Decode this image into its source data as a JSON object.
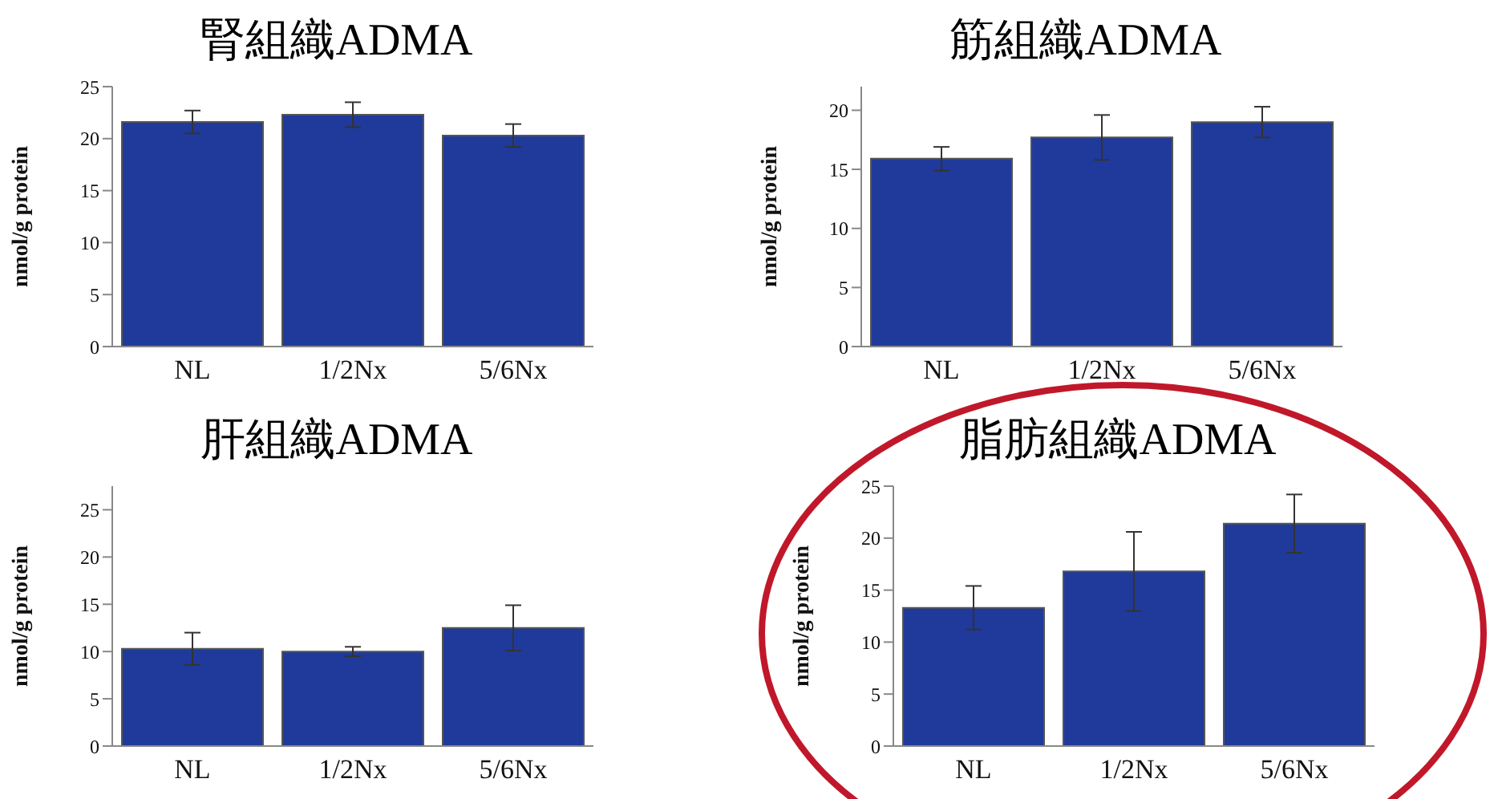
{
  "chart_data": [
    {
      "type": "bar",
      "title": "腎組織ADMA",
      "ylabel": "nmol/g protein",
      "categories": [
        "NL",
        "1/2Nx",
        "5/6Nx"
      ],
      "values": [
        21.6,
        22.3,
        20.3
      ],
      "errors": [
        1.1,
        1.2,
        1.1
      ],
      "color": "#1f3a9a",
      "ylim": [
        0,
        25
      ],
      "yticks": [
        0,
        5,
        10,
        15,
        20,
        25
      ]
    },
    {
      "type": "bar",
      "title": "筋組織ADMA",
      "ylabel": "nmol/g protein",
      "categories": [
        "NL",
        "1/2Nx",
        "5/6Nx"
      ],
      "values": [
        15.9,
        17.7,
        19.0
      ],
      "errors": [
        1.0,
        1.9,
        1.3
      ],
      "color": "#1f3a9a",
      "ylim": [
        0,
        22
      ],
      "yticks": [
        0,
        5,
        10,
        15,
        20
      ]
    },
    {
      "type": "bar",
      "title": "肝組織ADMA",
      "ylabel": "nmol/g protein",
      "categories": [
        "NL",
        "1/2Nx",
        "5/6Nx"
      ],
      "values": [
        10.3,
        10.0,
        12.5
      ],
      "errors": [
        1.7,
        0.5,
        2.4
      ],
      "color": "#1f3a9a",
      "ylim": [
        0,
        27.5
      ],
      "yticks": [
        0,
        5,
        10,
        15,
        20,
        25
      ]
    },
    {
      "type": "bar",
      "title": "脂肪組織ADMA",
      "ylabel": "nmol/g protein",
      "categories": [
        "NL",
        "1/2Nx",
        "5/6Nx"
      ],
      "values": [
        13.3,
        16.8,
        21.4
      ],
      "errors": [
        2.1,
        3.8,
        2.8
      ],
      "color": "#1f3a9a",
      "ylim": [
        0,
        25
      ],
      "yticks": [
        0,
        5,
        10,
        15,
        20,
        25
      ]
    }
  ]
}
